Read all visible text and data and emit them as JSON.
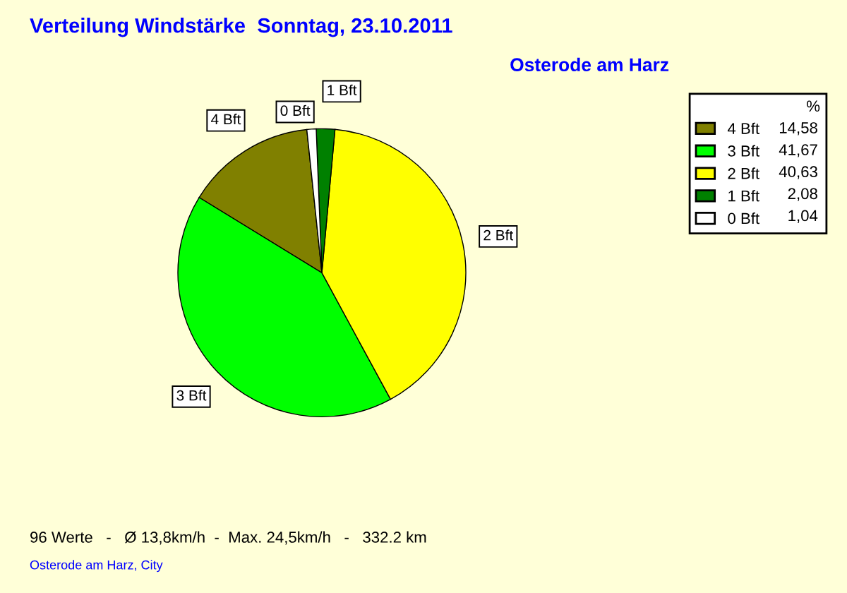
{
  "chart_data": {
    "type": "pie",
    "title": "Verteilung Windstärke  Sonntag, 23.10.2011",
    "subtitle": "Osterode am Harz",
    "categories": [
      "4 Bft",
      "3 Bft",
      "2 Bft",
      "1 Bft",
      "0 Bft"
    ],
    "values": [
      14.58,
      41.67,
      40.63,
      2.08,
      1.04
    ],
    "value_labels": [
      "14,58",
      "41,67",
      "40,63",
      "2,08",
      "1,04"
    ],
    "colors": [
      "#808000",
      "#00ff00",
      "#ffff00",
      "#008000",
      "#ffffff"
    ],
    "legend": "top right",
    "legend_title": "%",
    "annotations": [
      "96 Werte   -   Ø 13,8km/h  -  Max. 24,5km/h   -   332.2 km",
      "Osterode am Harz, City"
    ]
  }
}
